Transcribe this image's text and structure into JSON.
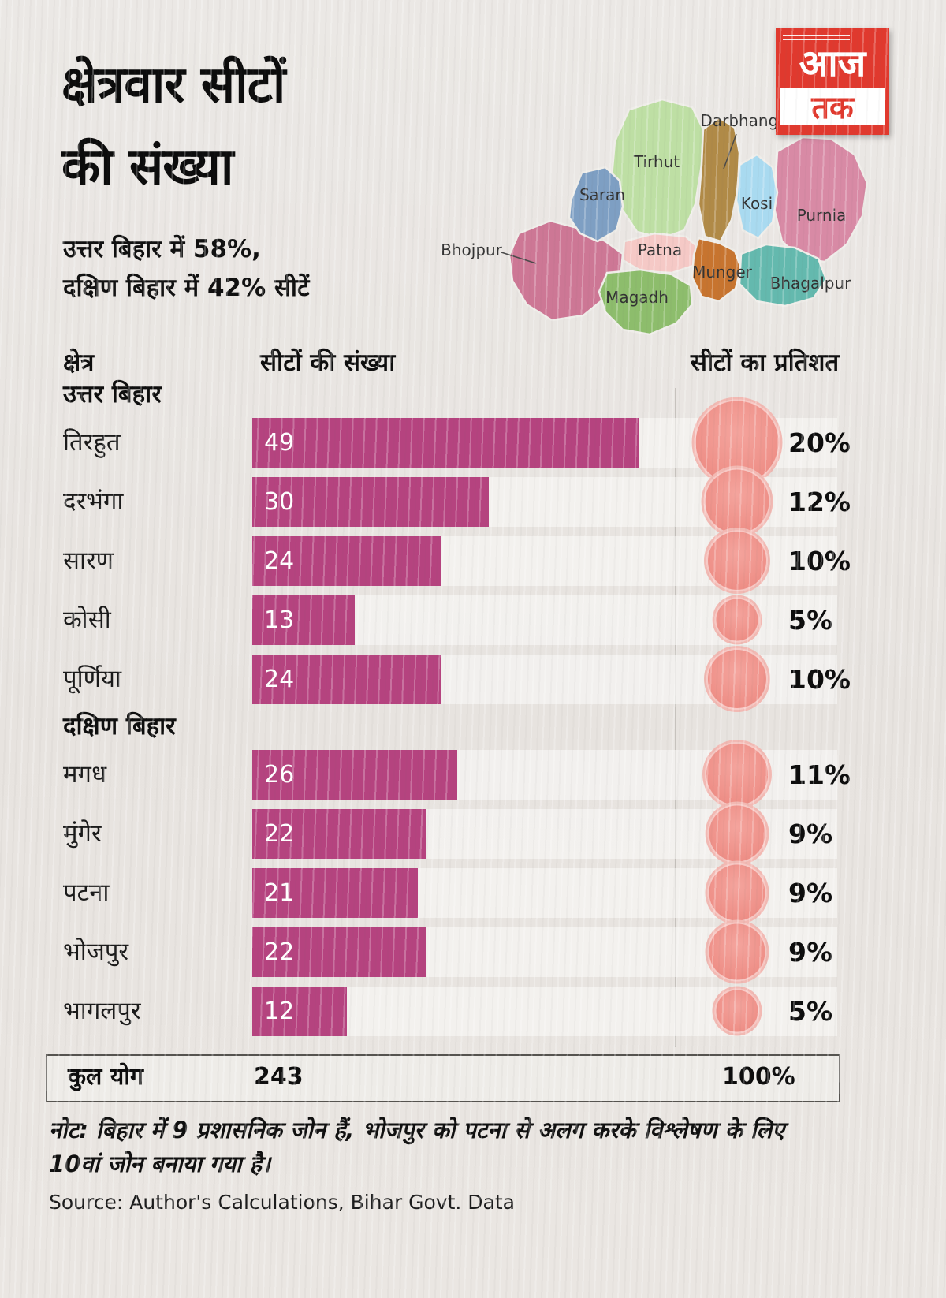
{
  "header": {
    "title_line1": "क्षेत्रवार सीटों",
    "title_line2": "की संख्या",
    "subtitle_line1": "उत्तर बिहार में 58%,",
    "subtitle_line2": "दक्षिण बिहार में 42% सीटें",
    "logo_top": "आज",
    "logo_bottom": "तक"
  },
  "map": {
    "regions": [
      {
        "name": "Tirhut",
        "color": "#bedfa4"
      },
      {
        "name": "Purnia",
        "color": "#d88aa5"
      },
      {
        "name": "Bhojpur",
        "color": "#cd7795"
      },
      {
        "name": "Saran",
        "color": "#7e9fc3"
      },
      {
        "name": "Darbhanga",
        "color": "#b08a47"
      },
      {
        "name": "Kosi",
        "color": "#a9daf0"
      },
      {
        "name": "Patna",
        "color": "#f5c9c6"
      },
      {
        "name": "Munger",
        "color": "#c7742f"
      },
      {
        "name": "Bhagalpur",
        "color": "#64b9ae"
      },
      {
        "name": "Magadh",
        "color": "#8dbd6c"
      }
    ]
  },
  "table": {
    "col_region": "क्षेत्र",
    "col_seats": "सीटों की संख्या",
    "col_pct": "सीटों का प्रतिशत",
    "groups": [
      {
        "label": "उत्तर बिहार",
        "rows": [
          {
            "region": "तिरहुत",
            "seats": 49,
            "pct": 20,
            "pct_label": "20%"
          },
          {
            "region": "दरभंगा",
            "seats": 30,
            "pct": 12,
            "pct_label": "12%"
          },
          {
            "region": "सारण",
            "seats": 24,
            "pct": 10,
            "pct_label": "10%"
          },
          {
            "region": "कोसी",
            "seats": 13,
            "pct": 5,
            "pct_label": "5%"
          },
          {
            "region": "पूर्णिया",
            "seats": 24,
            "pct": 10,
            "pct_label": "10%"
          }
        ]
      },
      {
        "label": "दक्षिण बिहार",
        "rows": [
          {
            "region": "मगध",
            "seats": 26,
            "pct": 11,
            "pct_label": "11%"
          },
          {
            "region": "मुंगेर",
            "seats": 22,
            "pct": 9,
            "pct_label": "9%"
          },
          {
            "region": "पटना",
            "seats": 21,
            "pct": 9,
            "pct_label": "9%"
          },
          {
            "region": "भोजपुर",
            "seats": 22,
            "pct": 9,
            "pct_label": "9%"
          },
          {
            "region": "भागलपुर",
            "seats": 12,
            "pct": 5,
            "pct_label": "5%"
          }
        ]
      }
    ],
    "total_label": "कुल योग",
    "total_seats": "243",
    "total_pct": "100%"
  },
  "footer": {
    "note_line1": "नोट: बिहार में 9 प्रशासनिक जोन हैं, भोजपुर को पटना से अलग करके विश्लेषण के लिए",
    "note_line2": "10वां जोन बनाया गया है।",
    "source": "Source: Author's Calculations, Bihar Govt. Data"
  },
  "style": {
    "bar_color": "#b5437f",
    "circle_color": "#ee8e86",
    "circle_highlight": "#f4a49d",
    "circle_ring": "#f2b9b3",
    "logo_red": "#e0392e"
  },
  "chart_data": {
    "type": "bar",
    "title": "क्षेत्रवार सीटों की संख्या",
    "subtitle": "उत्तर बिहार में 58%, दक्षिण बिहार में 42% सीटें",
    "categories": [
      "तिरहुत",
      "दरभंगा",
      "सारण",
      "कोसी",
      "पूर्णिया",
      "मगध",
      "मुंगेर",
      "पटना",
      "भोजपुर",
      "भागलपुर"
    ],
    "groups": [
      {
        "name": "उत्तर बिहार",
        "categories": [
          "तिरहुत",
          "दरभंगा",
          "सारण",
          "कोसी",
          "पूर्णिया"
        ]
      },
      {
        "name": "दक्षिण बिहार",
        "categories": [
          "मगध",
          "मुंगेर",
          "पटना",
          "भोजपुर",
          "भागलपुर"
        ]
      }
    ],
    "series": [
      {
        "name": "सीटों की संख्या",
        "values": [
          49,
          30,
          24,
          13,
          24,
          26,
          22,
          21,
          22,
          12
        ]
      },
      {
        "name": "सीटों का प्रतिशत (%)",
        "values": [
          20,
          12,
          10,
          5,
          10,
          11,
          9,
          9,
          9,
          5
        ]
      }
    ],
    "total": {
      "label": "कुल योग",
      "seats": 243,
      "pct": 100
    },
    "orientation": "horizontal",
    "xlim": [
      0,
      49
    ],
    "legend": false,
    "grid": false
  }
}
